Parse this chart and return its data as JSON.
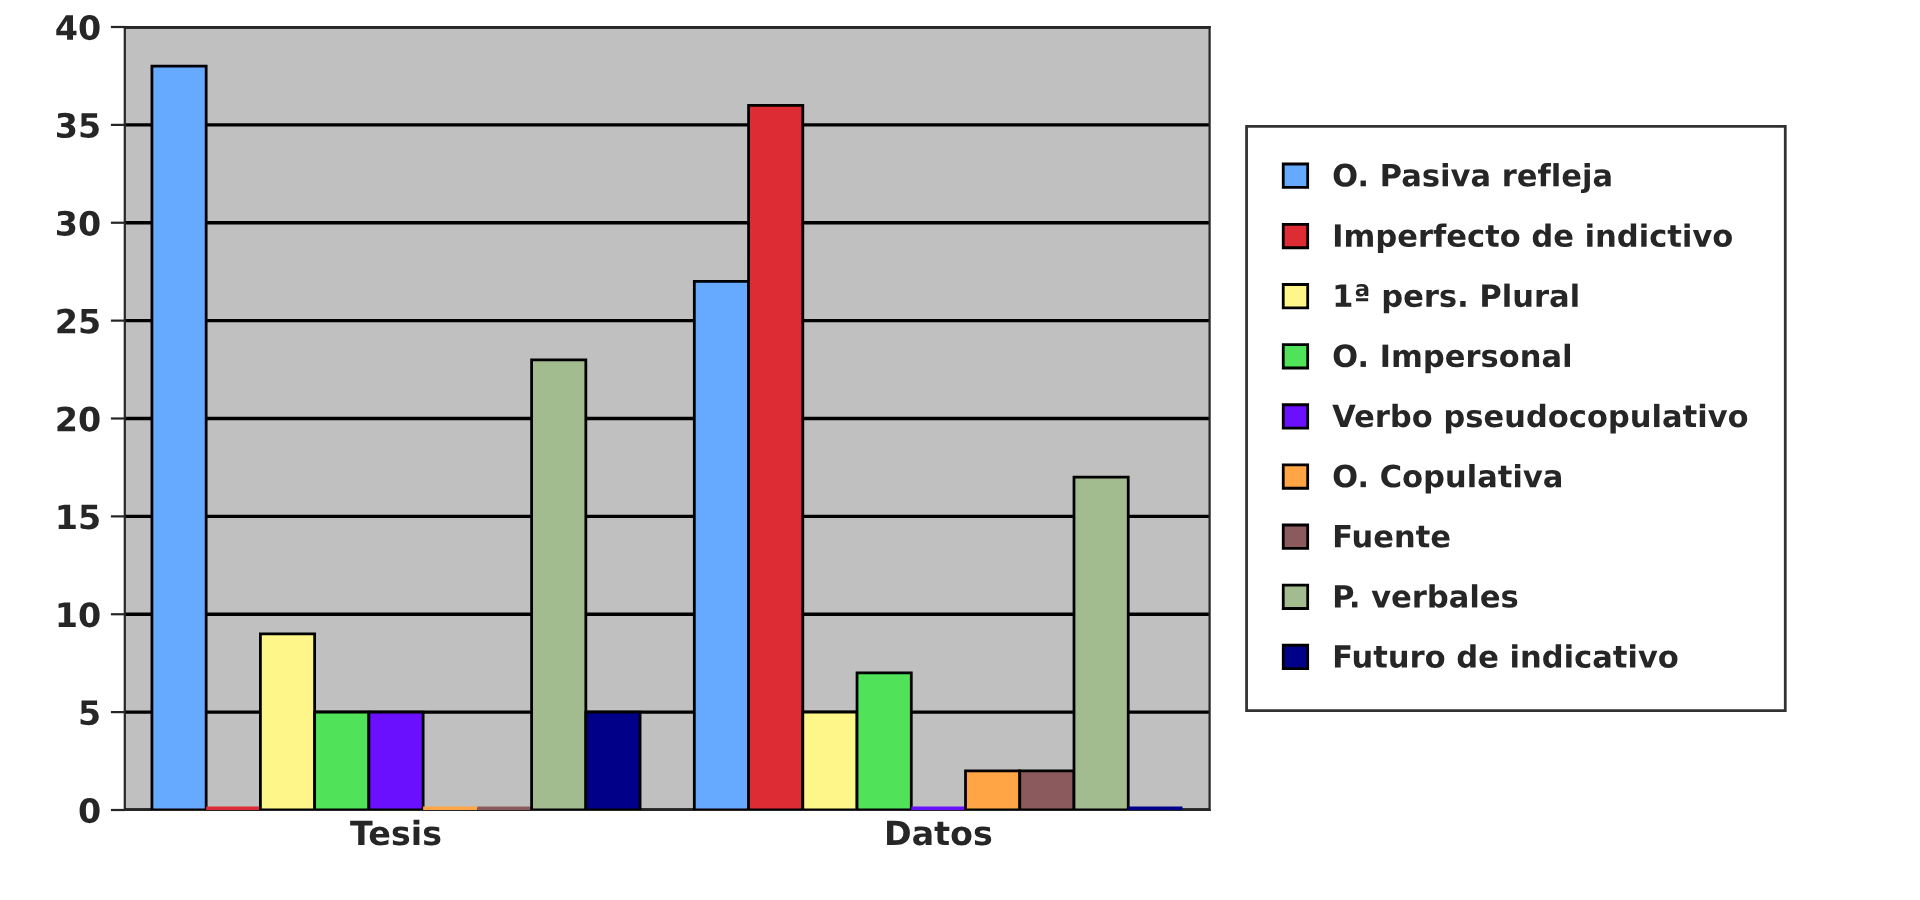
{
  "chart_data": {
    "type": "bar",
    "categories": [
      "Tesis",
      "Datos"
    ],
    "series": [
      {
        "name": "O. Pasiva refleja",
        "color": "#66aaff",
        "values": [
          38,
          27
        ]
      },
      {
        "name": "Imperfecto de indictivo",
        "color": "#dd2c33",
        "values": [
          0,
          36
        ]
      },
      {
        "name": "1ª pers. Plural",
        "color": "#fff68a",
        "values": [
          9,
          5
        ]
      },
      {
        "name": "O. Impersonal",
        "color": "#50e35a",
        "values": [
          5,
          7
        ]
      },
      {
        "name": "Verbo pseudocopulativo",
        "color": "#6a10ff",
        "values": [
          5,
          0
        ]
      },
      {
        "name": "O. Copulativa",
        "color": "#ffa545",
        "values": [
          0,
          2
        ]
      },
      {
        "name": "Fuente",
        "color": "#8b5a5c",
        "values": [
          0,
          2
        ]
      },
      {
        "name": "P. verbales",
        "color": "#a2bc8f",
        "values": [
          23,
          17
        ]
      },
      {
        "name": "Futuro de indicativo",
        "color": "#000088",
        "values": [
          5,
          0
        ]
      }
    ],
    "ylim": [
      0,
      40
    ],
    "yticks": [
      0,
      5,
      10,
      15,
      20,
      25,
      30,
      35,
      40
    ],
    "grid": "y",
    "legend": "right"
  }
}
